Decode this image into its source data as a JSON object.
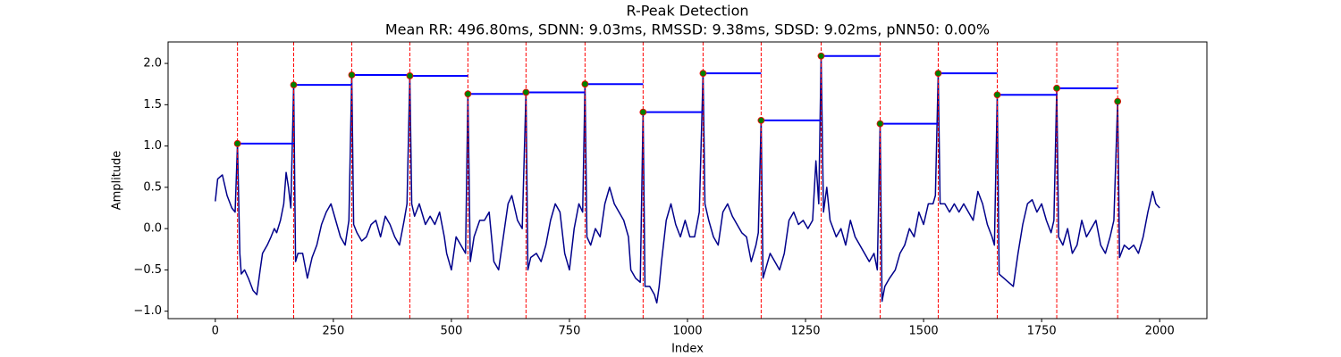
{
  "chart_data": {
    "type": "line",
    "title": "R-Peak Detection",
    "subtitle": "Mean RR: 496.80ms, SDNN: 9.03ms, RMSSD: 9.38ms, SDSD: 9.02ms, pNN50: 0.00%",
    "xlabel": "Index",
    "ylabel": "Amplitude",
    "xlim": [
      -100,
      2100
    ],
    "ylim": [
      -1.09,
      2.26
    ],
    "xticks": [
      0,
      250,
      500,
      750,
      1000,
      1250,
      1500,
      1750,
      2000
    ],
    "yticks": [
      {
        "value": -1,
        "label": "−1.0"
      },
      {
        "value": -0.5,
        "label": "−0.5"
      },
      {
        "value": 0,
        "label": "0.0"
      },
      {
        "value": 0.5,
        "label": "0.5"
      },
      {
        "value": 1,
        "label": "1.0"
      },
      {
        "value": 1.5,
        "label": "1.5"
      },
      {
        "value": 2,
        "label": "2.0"
      }
    ],
    "series": [
      {
        "color": "#00008b",
        "x": [
          0,
          5,
          15,
          25,
          35,
          42,
          47,
          52,
          55,
          62,
          70,
          80,
          88,
          95,
          100,
          110,
          118,
          125,
          130,
          138,
          145,
          150,
          155,
          160,
          166,
          170,
          175,
          185,
          195,
          205,
          215,
          225,
          235,
          245,
          255,
          265,
          275,
          283,
          289,
          293,
          300,
          310,
          320,
          330,
          340,
          350,
          360,
          370,
          380,
          390,
          400,
          406,
          412,
          416,
          422,
          432,
          445,
          455,
          465,
          475,
          485,
          490,
          500,
          510,
          520,
          530,
          535,
          540,
          548,
          560,
          570,
          580,
          590,
          600,
          610,
          620,
          628,
          640,
          650,
          658,
          662,
          668,
          680,
          690,
          700,
          710,
          720,
          730,
          740,
          750,
          760,
          770,
          778,
          783,
          787,
          795,
          805,
          815,
          825,
          835,
          845,
          855,
          865,
          875,
          880,
          890,
          900,
          906,
          910,
          920,
          930,
          935,
          940,
          945,
          955,
          965,
          975,
          985,
          995,
          1005,
          1015,
          1025,
          1033,
          1037,
          1045,
          1055,
          1065,
          1075,
          1085,
          1095,
          1105,
          1115,
          1125,
          1135,
          1145,
          1150,
          1156,
          1160,
          1165,
          1175,
          1185,
          1195,
          1205,
          1215,
          1225,
          1235,
          1245,
          1255,
          1265,
          1272,
          1278,
          1283,
          1288,
          1295,
          1302,
          1315,
          1325,
          1335,
          1345,
          1355,
          1365,
          1375,
          1385,
          1395,
          1402,
          1408,
          1412,
          1418,
          1428,
          1440,
          1450,
          1460,
          1470,
          1480,
          1490,
          1500,
          1510,
          1520,
          1525,
          1531,
          1535,
          1545,
          1555,
          1565,
          1575,
          1585,
          1595,
          1605,
          1615,
          1625,
          1635,
          1645,
          1650,
          1656,
          1660,
          1670,
          1680,
          1690,
          1700,
          1710,
          1720,
          1730,
          1740,
          1750,
          1760,
          1770,
          1776,
          1782,
          1786,
          1795,
          1805,
          1815,
          1825,
          1835,
          1845,
          1855,
          1865,
          1875,
          1885,
          1895,
          1903,
          1911,
          1915,
          1925,
          1935,
          1945,
          1955,
          1965,
          1975,
          1985,
          1992,
          2000
        ],
        "values": [
          0.33,
          0.6,
          0.65,
          0.4,
          0.25,
          0.2,
          1.03,
          -0.3,
          -0.55,
          -0.5,
          -0.6,
          -0.75,
          -0.8,
          -0.5,
          -0.3,
          -0.2,
          -0.1,
          0,
          -0.05,
          0.1,
          0.3,
          0.68,
          0.5,
          0.25,
          1.74,
          -0.4,
          -0.3,
          -0.3,
          -0.6,
          -0.35,
          -0.2,
          0.05,
          0.2,
          0.3,
          0.1,
          -0.1,
          -0.2,
          0.1,
          1.86,
          0.05,
          -0.05,
          -0.15,
          -0.1,
          0.05,
          0.1,
          -0.1,
          0.15,
          0.05,
          -0.1,
          -0.2,
          0.1,
          0.3,
          1.85,
          0.3,
          0.15,
          0.3,
          0.05,
          0.15,
          0.05,
          0.2,
          -0.1,
          -0.3,
          -0.5,
          -0.1,
          -0.2,
          -0.3,
          1.63,
          -0.4,
          -0.1,
          0.1,
          0.1,
          0.2,
          -0.4,
          -0.5,
          -0.1,
          0.3,
          0.4,
          0.1,
          0,
          1.65,
          -0.5,
          -0.35,
          -0.3,
          -0.4,
          -0.2,
          0.1,
          0.3,
          0.2,
          -0.3,
          -0.5,
          0,
          0.3,
          0.2,
          1.75,
          -0.1,
          -0.2,
          0,
          -0.1,
          0.3,
          0.5,
          0.3,
          0.2,
          0.1,
          -0.1,
          -0.5,
          -0.6,
          -0.65,
          1.41,
          -0.7,
          -0.7,
          -0.8,
          -0.9,
          -0.7,
          -0.4,
          0.1,
          0.3,
          0.05,
          -0.1,
          0.1,
          -0.1,
          -0.1,
          0.2,
          1.88,
          0.3,
          0.1,
          -0.1,
          -0.2,
          0.2,
          0.3,
          0.15,
          0.05,
          -0.05,
          -0.1,
          -0.4,
          -0.2,
          -0.05,
          1.31,
          -0.6,
          -0.5,
          -0.3,
          -0.4,
          -0.5,
          -0.3,
          0.1,
          0.2,
          0.05,
          0.1,
          0,
          0.1,
          0.82,
          0.3,
          2.09,
          0.2,
          0.5,
          0.1,
          -0.1,
          0,
          -0.2,
          0.1,
          -0.1,
          -0.2,
          -0.3,
          -0.4,
          -0.3,
          -0.5,
          1.27,
          -0.88,
          -0.7,
          -0.6,
          -0.5,
          -0.3,
          -0.2,
          0,
          -0.1,
          0.2,
          0.05,
          0.3,
          0.3,
          0.4,
          1.88,
          0.3,
          0.3,
          0.2,
          0.3,
          0.2,
          0.3,
          0.2,
          0.1,
          0.45,
          0.3,
          0.05,
          -0.1,
          -0.2,
          1.62,
          -0.55,
          -0.6,
          -0.65,
          -0.7,
          -0.3,
          0.05,
          0.3,
          0.35,
          0.2,
          0.3,
          0.1,
          -0.05,
          0.1,
          1.7,
          -0.1,
          -0.2,
          0,
          -0.3,
          -0.2,
          0.1,
          -0.1,
          0,
          0.1,
          -0.2,
          -0.3,
          -0.1,
          0.1,
          1.54,
          -0.35,
          -0.2,
          -0.25,
          -0.2,
          -0.3,
          -0.1,
          0.2,
          0.45,
          0.3,
          0.25
        ]
      }
    ],
    "peaks": {
      "color": "#008000",
      "edge_color": "#ff0000",
      "line_color": "#ff0000",
      "step_color": "#0000ff",
      "x": [
        47,
        166,
        289,
        412,
        535,
        658,
        783,
        906,
        1033,
        1156,
        1283,
        1408,
        1531,
        1656,
        1782,
        1911
      ],
      "values": [
        1.03,
        1.74,
        1.86,
        1.85,
        1.63,
        1.65,
        1.75,
        1.41,
        1.88,
        1.31,
        2.09,
        1.27,
        1.88,
        1.62,
        1.7,
        1.54
      ]
    }
  }
}
